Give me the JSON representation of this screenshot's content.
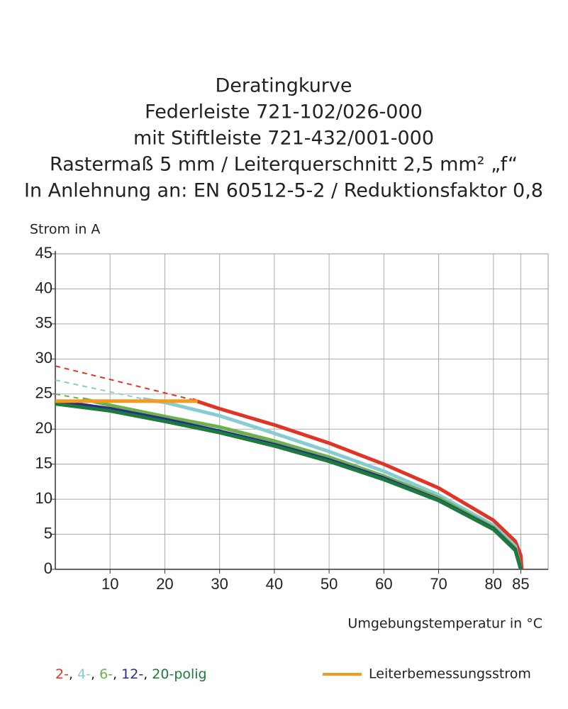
{
  "chart_data": {
    "type": "line",
    "title": [
      "Deratingkurve",
      "Federleiste 721-102/026-000",
      "mit Stiftleiste 721-432/001-000",
      "Rastermaß 5 mm / Leiterquerschnitt 2,5 mm² „f“",
      "In Anlehnung an: EN 60512-5-2 / Reduktionsfaktor 0,8"
    ],
    "y_label": "Strom in A",
    "x_label": "Umgebungstemperatur in °C",
    "xlim": [
      0,
      90
    ],
    "ylim": [
      0,
      45
    ],
    "xticks": [
      10,
      20,
      30,
      40,
      50,
      60,
      70,
      80,
      85
    ],
    "yticks": [
      0,
      5,
      10,
      15,
      20,
      25,
      30,
      35,
      40,
      45
    ],
    "grid": true,
    "legend_separator": ",",
    "series": [
      {
        "name": "2-",
        "color": "#e03526",
        "x": [
          25,
          30,
          40,
          50,
          60,
          70,
          80,
          84,
          85,
          85.2
        ],
        "values": [
          24.2,
          22.9,
          20.6,
          18,
          15,
          11.6,
          7,
          4,
          2,
          0
        ],
        "extrapolated": {
          "x": [
            0,
            25
          ],
          "values": [
            29,
            24.2
          ]
        }
      },
      {
        "name": "4-",
        "color": "#88cbd3",
        "x": [
          16,
          20,
          30,
          40,
          50,
          60,
          70,
          80,
          84,
          85
        ],
        "values": [
          24.3,
          23.8,
          21.9,
          19.4,
          16.8,
          14,
          10.6,
          6.3,
          3.3,
          0
        ],
        "extrapolated": {
          "x": [
            0,
            16
          ],
          "values": [
            27,
            24.3
          ]
        }
      },
      {
        "name": "6-",
        "color": "#6cb24c",
        "x": [
          5,
          10,
          20,
          30,
          40,
          50,
          60,
          70,
          80,
          84,
          85
        ],
        "values": [
          24.3,
          23.4,
          21.8,
          20.3,
          18.3,
          16,
          13.3,
          10.2,
          6,
          3,
          0
        ],
        "extrapolated": {
          "x": [
            0,
            5
          ],
          "values": [
            25,
            24.3
          ]
        }
      },
      {
        "name": "12-",
        "color": "#2b2b8c",
        "x": [
          0,
          10,
          20,
          30,
          40,
          50,
          60,
          70,
          80,
          84,
          85
        ],
        "values": [
          24,
          22.9,
          21.4,
          19.7,
          17.8,
          15.6,
          13,
          9.9,
          5.8,
          2.8,
          0
        ]
      },
      {
        "name": "20-polig",
        "color": "#1c7a3c",
        "x": [
          0,
          10,
          20,
          30,
          40,
          50,
          60,
          70,
          80,
          84,
          85
        ],
        "values": [
          23.6,
          22.6,
          21.1,
          19.5,
          17.6,
          15.4,
          12.8,
          9.8,
          5.7,
          2.7,
          0
        ]
      },
      {
        "name": "Leiterbemessungsstrom",
        "color": "#f39a1f",
        "x": [
          0,
          26
        ],
        "values": [
          24,
          24
        ]
      }
    ]
  }
}
